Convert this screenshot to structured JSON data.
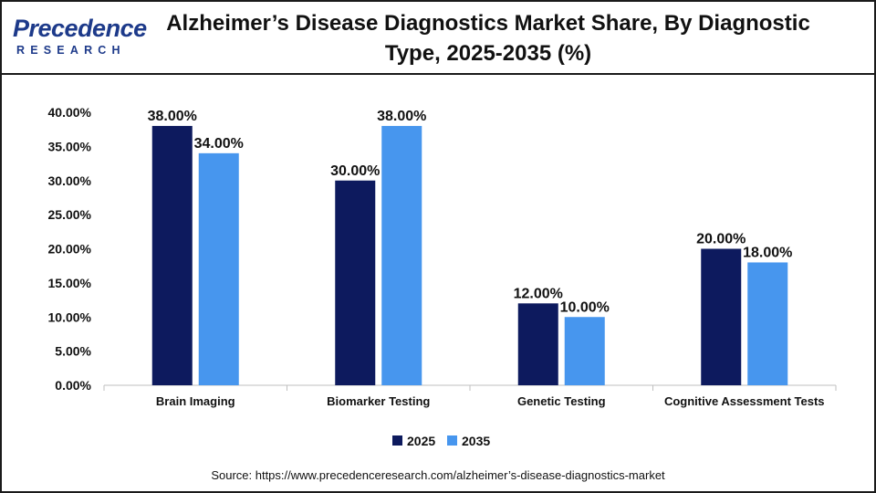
{
  "header": {
    "logo_word": "Precedence",
    "logo_sub": "RESEARCH",
    "title": "Alzheimer’s Disease Diagnostics Market Share, By Diagnostic Type, 2025-2035 (%)"
  },
  "chart_data": {
    "type": "bar",
    "title": "Alzheimer’s Disease Diagnostics Market Share, By Diagnostic Type, 2025-2035 (%)",
    "xlabel": "",
    "ylabel": "",
    "categories": [
      "Brain Imaging",
      "Biomarker Testing",
      "Genetic Testing",
      "Cognitive Assessment Tests"
    ],
    "series": [
      {
        "name": "2025",
        "values": [
          38,
          30,
          12,
          20
        ],
        "color": "#0d1a5e",
        "labels": [
          "38.00%",
          "30.00%",
          "12.00%",
          "20.00%"
        ]
      },
      {
        "name": "2035",
        "values": [
          34,
          38,
          10,
          18
        ],
        "color": "#4796ee",
        "labels": [
          "34.00%",
          "38.00%",
          "10.00%",
          "18.00%"
        ]
      }
    ],
    "ylim": [
      0,
      40
    ],
    "yticks": [
      0,
      5,
      10,
      15,
      20,
      25,
      30,
      35,
      40
    ],
    "ytick_labels": [
      "0.00%",
      "5.00%",
      "10.00%",
      "15.00%",
      "20.00%",
      "25.00%",
      "30.00%",
      "35.00%",
      "40.00%"
    ],
    "grid": false,
    "legend_position": "bottom-center"
  },
  "footer": {
    "source": "Source: https://www.precedenceresearch.com/alzheimer’s-disease-diagnostics-market"
  }
}
